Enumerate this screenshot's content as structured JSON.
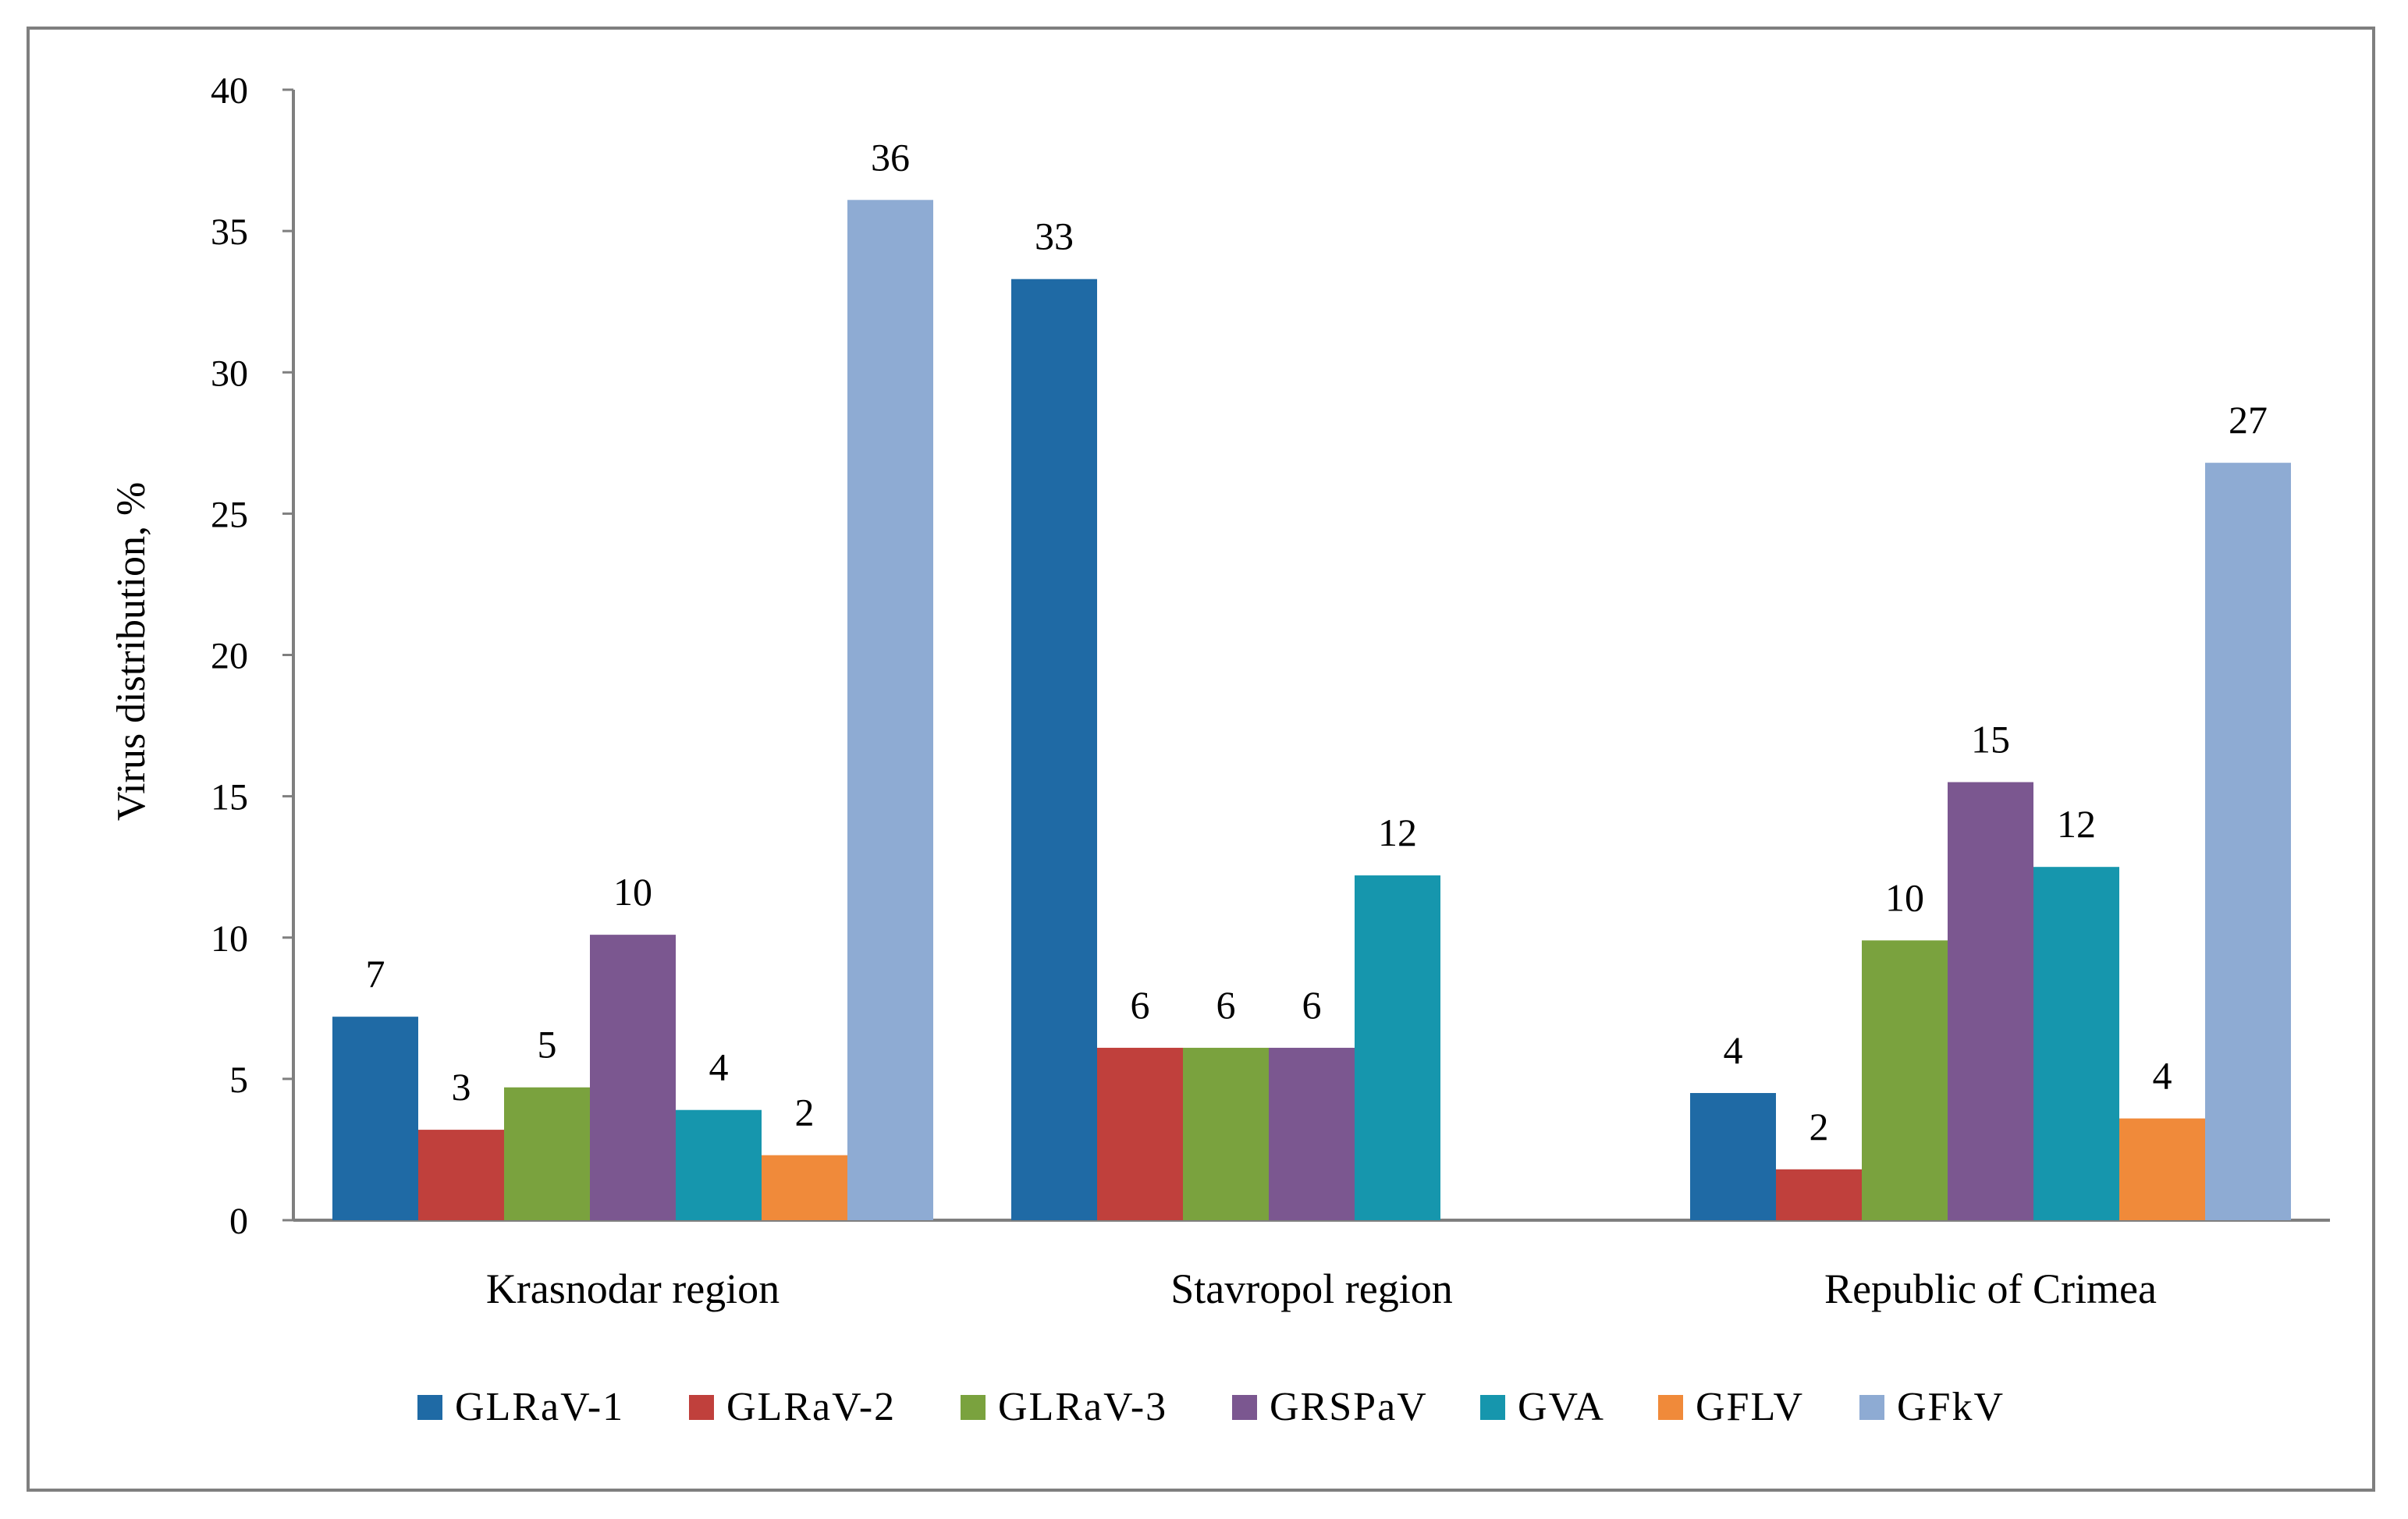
{
  "chart_data": {
    "type": "bar",
    "title": "",
    "xlabel": "",
    "ylabel": "Virus distribution, %",
    "ylim": [
      0,
      40
    ],
    "yticks": [
      0,
      5,
      10,
      15,
      20,
      25,
      30,
      35,
      40
    ],
    "grid": false,
    "legend_position": "bottom",
    "categories": [
      "Krasnodar region",
      "Stavropol region",
      "Republic of Crimea"
    ],
    "series": [
      {
        "name": "GLRaV-1",
        "color": "#1f6aa5",
        "values": [
          7.2,
          33.3,
          4.5
        ],
        "labels": [
          "7",
          "33",
          "4"
        ]
      },
      {
        "name": "GLRaV-2",
        "color": "#c0403c",
        "values": [
          3.2,
          6.1,
          1.8
        ],
        "labels": [
          "3",
          "6",
          "2"
        ]
      },
      {
        "name": "GLRaV-3",
        "color": "#7aa23e",
        "values": [
          4.7,
          6.1,
          9.9
        ],
        "labels": [
          "5",
          "6",
          "10"
        ]
      },
      {
        "name": "GRSPaV",
        "color": "#7b5790",
        "values": [
          10.1,
          6.1,
          15.5
        ],
        "labels": [
          "10",
          "6",
          "15"
        ]
      },
      {
        "name": "GVA",
        "color": "#1696ad",
        "values": [
          3.9,
          12.2,
          12.5
        ],
        "labels": [
          "4",
          "12",
          "12"
        ]
      },
      {
        "name": "GFLV",
        "color": "#f08a3a",
        "values": [
          2.3,
          null,
          3.6
        ],
        "labels": [
          "2",
          "",
          "4"
        ]
      },
      {
        "name": "GFkV",
        "color": "#8eabd3",
        "values": [
          36.1,
          null,
          26.8
        ],
        "labels": [
          "36",
          "",
          "27"
        ]
      }
    ]
  }
}
